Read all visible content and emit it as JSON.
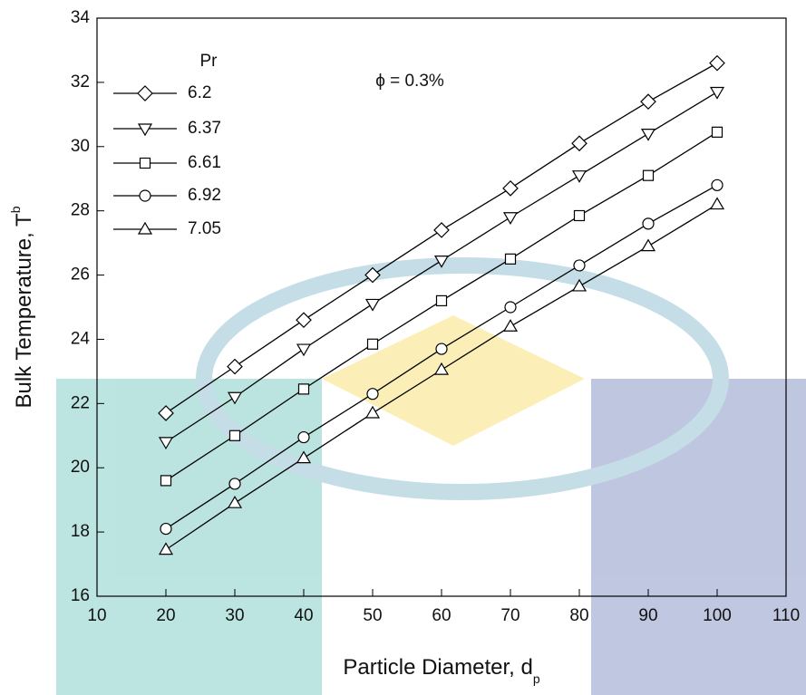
{
  "chart_data": {
    "type": "line",
    "x_label": "Particle Diameter, d",
    "x_label_sub": "p",
    "y_label": "Bulk Temperature, T",
    "y_label_sub": "b",
    "annotation": "ϕ = 0.3%",
    "legend_title": "Pr",
    "legend": "upper left",
    "x": [
      20,
      30,
      40,
      50,
      60,
      70,
      80,
      90,
      100
    ],
    "series": [
      {
        "name": "6.2",
        "marker": "diamond",
        "color": "#000000",
        "values": [
          21.7,
          23.15,
          24.6,
          26.0,
          27.4,
          28.7,
          30.1,
          31.4,
          32.6
        ]
      },
      {
        "name": "6.37",
        "marker": "triangle-down",
        "color": "#000000",
        "values": [
          20.8,
          22.2,
          23.7,
          25.1,
          26.45,
          27.8,
          29.1,
          30.4,
          31.7
        ]
      },
      {
        "name": "6.61",
        "marker": "square",
        "color": "#000000",
        "values": [
          19.6,
          21.0,
          22.45,
          23.85,
          25.2,
          26.5,
          27.85,
          29.1,
          30.45
        ]
      },
      {
        "name": "6.92",
        "marker": "circle",
        "color": "#000000",
        "values": [
          18.1,
          19.5,
          20.95,
          22.3,
          23.7,
          25.0,
          26.3,
          27.6,
          28.8
        ]
      },
      {
        "name": "7.05",
        "marker": "triangle-up",
        "color": "#000000",
        "values": [
          17.45,
          18.9,
          20.3,
          21.7,
          23.05,
          24.4,
          25.65,
          26.9,
          28.2
        ]
      }
    ],
    "xlim": [
      10,
      110
    ],
    "xticks": [
      10,
      20,
      30,
      40,
      50,
      60,
      70,
      80,
      90,
      100,
      110
    ],
    "ylim": [
      16,
      34
    ],
    "yticks": [
      16,
      18,
      20,
      22,
      24,
      26,
      28,
      30,
      32,
      34
    ]
  }
}
